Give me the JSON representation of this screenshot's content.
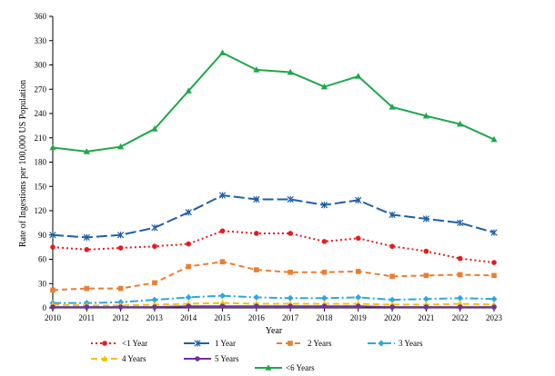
{
  "chart_data": {
    "type": "line",
    "title": "",
    "xlabel": "Year",
    "ylabel": "Rate of Ingestions per 100,000 US Population",
    "x": [
      2010,
      2011,
      2012,
      2013,
      2014,
      2015,
      2016,
      2017,
      2018,
      2019,
      2020,
      2021,
      2022,
      2023
    ],
    "ylim": [
      0,
      360
    ],
    "yticks": [
      0,
      30,
      60,
      90,
      120,
      150,
      180,
      210,
      240,
      270,
      300,
      330,
      360
    ],
    "grid": false,
    "legend_position": "bottom",
    "series": [
      {
        "name": "<1 Year",
        "color": "#e8191f",
        "dash": "2,3",
        "marker": "circle",
        "values": [
          75,
          72,
          74,
          76,
          79,
          95,
          92,
          92,
          82,
          86,
          76,
          70,
          61,
          56
        ]
      },
      {
        "name": "1  Year",
        "color": "#1f5fa8",
        "dash": "12,4",
        "marker": "asterisk",
        "values": [
          90,
          87,
          90,
          99,
          118,
          139,
          134,
          134,
          127,
          133,
          115,
          110,
          105,
          93
        ]
      },
      {
        "name": "2  Years",
        "color": "#ed7d31",
        "dash": "6,4",
        "marker": "square",
        "values": [
          22,
          24,
          24,
          31,
          51,
          57,
          47,
          44,
          44,
          45,
          39,
          40,
          41,
          40
        ]
      },
      {
        "name": "3  Years",
        "color": "#2ba8e0",
        "dash": "9,3,2,3",
        "marker": "diamond",
        "values": [
          6,
          6,
          7,
          10,
          13,
          15,
          13,
          12,
          12,
          13,
          10,
          11,
          12,
          11
        ]
      },
      {
        "name": "4  Years",
        "color": "#f5c000",
        "dash": "7,4",
        "marker": "triangle",
        "values": [
          4,
          3,
          3,
          4,
          5,
          6,
          5,
          5,
          5,
          5,
          4,
          4,
          5,
          4
        ]
      },
      {
        "name": "5  Years",
        "color": "#7030a0",
        "dash": "",
        "marker": "circle",
        "values": [
          1,
          1,
          1,
          1,
          2,
          2,
          2,
          2,
          2,
          2,
          1,
          1,
          1,
          1
        ]
      },
      {
        "name": "<6 Years",
        "color": "#1fa84a",
        "dash": "",
        "marker": "triangle",
        "values": [
          198,
          193,
          199,
          221,
          268,
          315,
          294,
          291,
          273,
          286,
          248,
          237,
          227,
          208
        ]
      }
    ]
  }
}
